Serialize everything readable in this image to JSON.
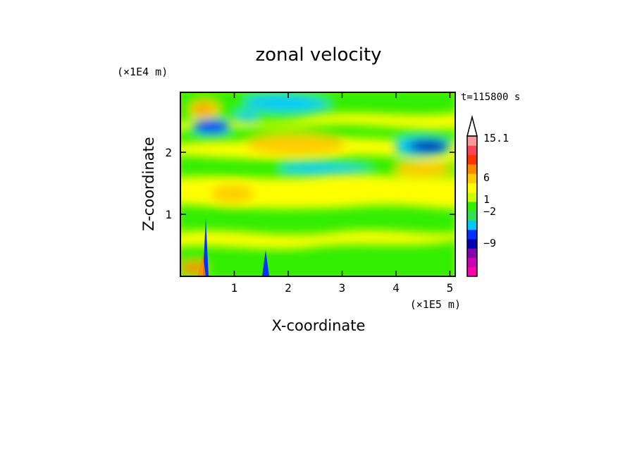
{
  "chart_data": {
    "type": "heatmap",
    "title": "zonal velocity",
    "xlabel": "X-coordinate",
    "ylabel": "Z-coordinate",
    "x_scale_label": "(×1E5 m)",
    "y_scale_label": "(×1E4 m)",
    "time_label": "t=115800 s",
    "x_ticks": [
      "1",
      "2",
      "3",
      "4",
      "5"
    ],
    "y_ticks": [
      "1",
      "2"
    ],
    "xlim": [
      0,
      5.1
    ],
    "ylim": [
      0,
      2.95
    ],
    "colorbar": {
      "levels": [
        -15,
        -12,
        -9,
        -6,
        -4,
        -2,
        -1,
        0,
        1,
        2,
        4,
        6,
        9,
        12,
        15.1
      ],
      "colors": [
        "#ff00aa",
        "#cc00b4",
        "#8800aa",
        "#0000b4",
        "#0030ff",
        "#00c8ff",
        "#33dd55",
        "#33ee00",
        "#ccff00",
        "#ffff00",
        "#ffcc00",
        "#ff8800",
        "#ff3300",
        "#ff4455",
        "#ff9999",
        "#ffd0d0"
      ],
      "tick_labels": [
        "15.1",
        "6",
        "1",
        "-2",
        "-9"
      ],
      "extend_max": true
    },
    "features": [
      {
        "x": 0.45,
        "z": 2.4,
        "value": -8
      },
      {
        "x": 1.2,
        "z": 2.6,
        "value": -6
      },
      {
        "x": 4.6,
        "z": 2.1,
        "value": -10
      },
      {
        "x": 0.45,
        "z": 2.7,
        "value": 8
      },
      {
        "x": 0.5,
        "z": 0.2,
        "value": -6
      },
      {
        "x": 1.6,
        "z": 0.25,
        "value": -6
      }
    ]
  }
}
